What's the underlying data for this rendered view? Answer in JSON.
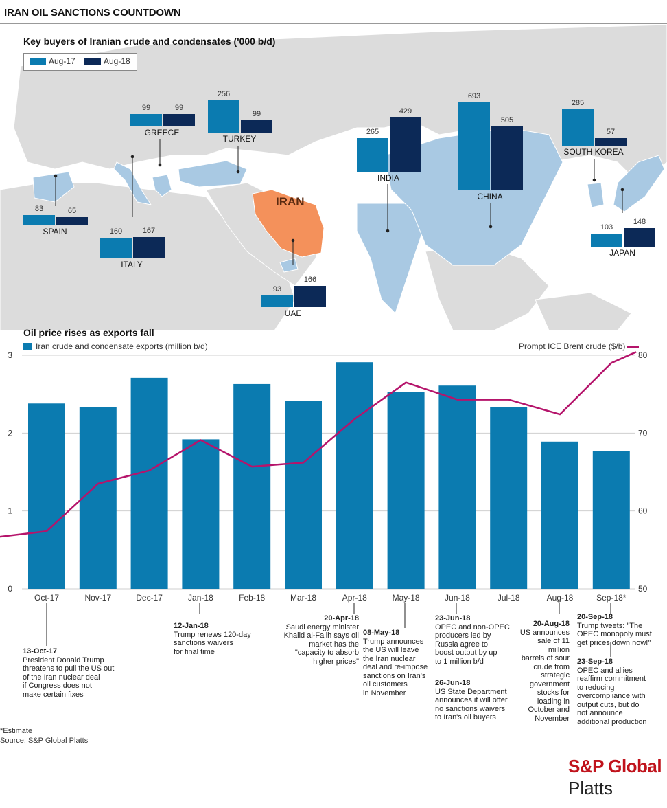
{
  "header": {
    "title": "IRAN OIL SANCTIONS COUNTDOWN"
  },
  "colors": {
    "aug17": "#0b7bb0",
    "aug18": "#0c2957",
    "exports_bar": "#0b7bb0",
    "brent_line": "#b5146b",
    "iran_fill": "#f4915b",
    "importer_fill": "#a9c9e3",
    "land": "#dcdcdc"
  },
  "map_section": {
    "title": "Key buyers of Iranian crude and condensates ('000 b/d)",
    "legend": [
      "Aug-17",
      "Aug-18"
    ],
    "iran_label": "IRAN"
  },
  "chart_data": [
    {
      "type": "bar",
      "title": "Key buyers of Iranian crude and condensates ('000 b/d)",
      "categories": [
        "SPAIN",
        "ITALY",
        "GREECE",
        "TURKEY",
        "UAE",
        "INDIA",
        "CHINA",
        "SOUTH KOREA",
        "JAPAN"
      ],
      "series": [
        {
          "name": "Aug-17",
          "values": [
            83,
            160,
            99,
            256,
            93,
            265,
            693,
            285,
            103
          ]
        },
        {
          "name": "Aug-18",
          "values": [
            65,
            167,
            99,
            99,
            166,
            429,
            505,
            57,
            148
          ]
        }
      ]
    },
    {
      "type": "bar",
      "title": "Oil price rises as exports fall",
      "categories": [
        "Oct-17",
        "Nov-17",
        "Dec-17",
        "Jan-18",
        "Feb-18",
        "Mar-18",
        "Apr-18",
        "May-18",
        "Jun-18",
        "Jul-18",
        "Aug-18",
        "Sep-18*"
      ],
      "series": [
        {
          "name": "Iran crude and condensate exports (million b/d)",
          "type": "bar",
          "axis": "left",
          "values": [
            2.38,
            2.33,
            2.71,
            1.92,
            2.63,
            2.41,
            2.91,
            2.53,
            2.61,
            2.33,
            1.89,
            1.77
          ]
        },
        {
          "name": "Prompt ICE Brent crude ($/b)",
          "type": "line",
          "axis": "right",
          "values": [
            57.4,
            63.5,
            65.2,
            69.1,
            65.7,
            66.2,
            71.8,
            76.5,
            74.3,
            74.3,
            72.4,
            79.0
          ]
        }
      ],
      "ylim_left": [
        0,
        3
      ],
      "yticks_left": [
        "0",
        "1",
        "2",
        "3"
      ],
      "ylim_right": [
        50,
        80
      ],
      "yticks_right": [
        "50",
        "60",
        "70",
        "80"
      ],
      "legend_left": "Iran crude and condensate exports (million b/d)",
      "legend_right": "Prompt ICE Brent crude ($/b)"
    }
  ],
  "annotations": [
    {
      "date": "13-Oct-17",
      "text": "President Donald Trump\nthreatens to pull the US out\nof the Iran nuclear deal\nif Congress does not\nmake certain fixes"
    },
    {
      "date": "12-Jan-18",
      "text": "Trump renews 120-day\nsanctions waivers\nfor final time"
    },
    {
      "date": "20-Apr-18",
      "text": "Saudi energy minister\nKhalid al-Falih says oil\nmarket has the\n\"capacity to absorb\nhigher prices\""
    },
    {
      "date": "08-May-18",
      "text": "Trump announces\nthe US will leave\nthe Iran nuclear\ndeal and re-impose\nsanctions on Iran's\noil customers\nin November"
    },
    {
      "date": "23-Jun-18",
      "text": "OPEC and non-OPEC\nproducers led by\nRussia agree to\nboost output by up\nto 1 million b/d"
    },
    {
      "date": "26-Jun-18",
      "text": "US State Department\nannounces it will offer\nno sanctions waivers\nto Iran's oil buyers"
    },
    {
      "date": "20-Aug-18",
      "text": "US announces\nsale of 11 million\nbarrels of sour\ncrude from\nstrategic\ngovernment\nstocks for\nloading in\nOctober and\nNovember"
    },
    {
      "date": "20-Sep-18",
      "text": "Trump tweets: \"The\nOPEC monopoly must\nget prices down now!\""
    },
    {
      "date": "23-Sep-18",
      "text": "OPEC and allies\nreaffirm commitment\nto reducing\novercompliance with\noutput cuts, but do\nnot announce\nadditional production"
    }
  ],
  "footer": {
    "note": "*Estimate",
    "source": "Source: S&P Global Platts"
  },
  "logo": {
    "line1": "S&P Global",
    "line2": "Platts"
  }
}
